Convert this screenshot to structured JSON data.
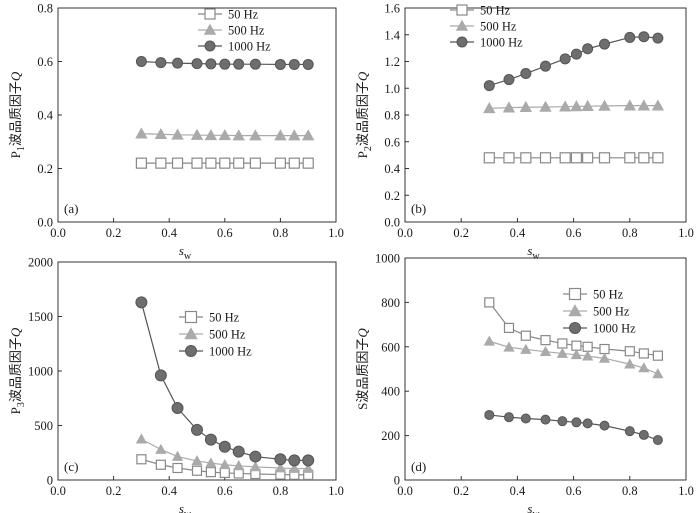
{
  "chart_data": [
    {
      "type": "line",
      "panel": "(a)",
      "ylabel_prefix": "P",
      "ylabel_sub": "1",
      "ylabel_main": "波品质因子",
      "ylabel_q": "Q",
      "xlabel_main": "s",
      "xlabel_sub": "w",
      "xlim": [
        0.0,
        1.0
      ],
      "ylim": [
        0.0,
        0.8
      ],
      "x_ticks": [
        0.0,
        0.2,
        0.4,
        0.6,
        0.8,
        1.0
      ],
      "y_ticks": [
        0.0,
        0.2,
        0.4,
        0.6,
        0.8
      ],
      "x_tick_labels": [
        "0.0",
        "0.2",
        "0.4",
        "0.6",
        "0.8",
        "1.0"
      ],
      "y_tick_labels": [
        "0.0",
        "0.2",
        "0.4",
        "0.6",
        "0.8"
      ],
      "legend_position": "top-center",
      "x": [
        0.3,
        0.37,
        0.43,
        0.5,
        0.55,
        0.6,
        0.65,
        0.71,
        0.8,
        0.85,
        0.9
      ],
      "series": [
        {
          "name": "50 Hz",
          "marker": "square",
          "color": "#888888",
          "fill": "#ffffff",
          "values": [
            0.22,
            0.22,
            0.22,
            0.22,
            0.22,
            0.22,
            0.22,
            0.22,
            0.22,
            0.22,
            0.22
          ]
        },
        {
          "name": "500 Hz",
          "marker": "triangle",
          "color": "#aaaaaa",
          "fill": "#aaaaaa",
          "values": [
            0.33,
            0.328,
            0.326,
            0.325,
            0.324,
            0.324,
            0.323,
            0.323,
            0.323,
            0.323,
            0.323
          ]
        },
        {
          "name": "1000 Hz",
          "marker": "circle",
          "color": "#555555",
          "fill": "#6e6e6e",
          "values": [
            0.6,
            0.596,
            0.594,
            0.592,
            0.591,
            0.59,
            0.59,
            0.59,
            0.589,
            0.589,
            0.589
          ]
        }
      ]
    },
    {
      "type": "line",
      "panel": "(b)",
      "ylabel_prefix": "P",
      "ylabel_sub": "2",
      "ylabel_main": "波品质因子",
      "ylabel_q": "Q",
      "xlabel_main": "s",
      "xlabel_sub": "w",
      "xlim": [
        0.0,
        1.0
      ],
      "ylim": [
        0.0,
        1.6
      ],
      "x_ticks": [
        0.0,
        0.2,
        0.4,
        0.6,
        0.8,
        1.0
      ],
      "y_ticks": [
        0.0,
        0.2,
        0.4,
        0.6,
        0.8,
        1.0,
        1.2,
        1.4,
        1.6
      ],
      "x_tick_labels": [
        "0.0",
        "0.2",
        "0.4",
        "0.6",
        "0.8",
        "1.0"
      ],
      "y_tick_labels": [
        "0.0",
        "0.2",
        "0.4",
        "0.6",
        "0.8",
        "1.0",
        "1.2",
        "1.4",
        "1.6"
      ],
      "legend_position": "top-center",
      "x": [
        0.3,
        0.37,
        0.43,
        0.5,
        0.57,
        0.61,
        0.65,
        0.71,
        0.8,
        0.85,
        0.9
      ],
      "series": [
        {
          "name": "50 Hz",
          "marker": "square",
          "color": "#888888",
          "fill": "#ffffff",
          "values": [
            0.48,
            0.48,
            0.48,
            0.48,
            0.48,
            0.48,
            0.48,
            0.48,
            0.48,
            0.48,
            0.48
          ]
        },
        {
          "name": "500 Hz",
          "marker": "triangle",
          "color": "#aaaaaa",
          "fill": "#aaaaaa",
          "values": [
            0.85,
            0.855,
            0.858,
            0.86,
            0.862,
            0.864,
            0.866,
            0.868,
            0.87,
            0.87,
            0.87
          ]
        },
        {
          "name": "1000 Hz",
          "marker": "circle",
          "color": "#555555",
          "fill": "#6e6e6e",
          "values": [
            1.02,
            1.065,
            1.11,
            1.165,
            1.22,
            1.255,
            1.295,
            1.33,
            1.38,
            1.385,
            1.375
          ]
        }
      ]
    },
    {
      "type": "line",
      "panel": "(c)",
      "ylabel_prefix": "P",
      "ylabel_sub": "3",
      "ylabel_main": "波品质因子",
      "ylabel_q": "Q",
      "xlabel_main": "s",
      "xlabel_sub": "w",
      "xlim": [
        0.0,
        1.0
      ],
      "ylim": [
        0,
        2000
      ],
      "x_ticks": [
        0.0,
        0.2,
        0.4,
        0.6,
        0.8,
        1.0
      ],
      "y_ticks": [
        0,
        500,
        1000,
        1500,
        2000
      ],
      "x_tick_labels": [
        "0.0",
        "0.2",
        "0.4",
        "0.6",
        "0.8",
        "1.0"
      ],
      "y_tick_labels": [
        "0",
        "500",
        "1000",
        "1500",
        "2000"
      ],
      "legend_position": "center-right",
      "x": [
        0.3,
        0.37,
        0.43,
        0.5,
        0.55,
        0.6,
        0.65,
        0.71,
        0.8,
        0.85,
        0.9
      ],
      "series": [
        {
          "name": "50 Hz",
          "marker": "square",
          "color": "#888888",
          "fill": "#ffffff",
          "values": [
            190,
            140,
            110,
            85,
            72,
            65,
            60,
            55,
            50,
            48,
            47
          ]
        },
        {
          "name": "500 Hz",
          "marker": "triangle",
          "color": "#aaaaaa",
          "fill": "#aaaaaa",
          "values": [
            375,
            280,
            215,
            175,
            155,
            140,
            130,
            120,
            110,
            105,
            105
          ]
        },
        {
          "name": "1000 Hz",
          "marker": "circle",
          "color": "#555555",
          "fill": "#6e6e6e",
          "values": [
            1630,
            960,
            660,
            460,
            370,
            305,
            260,
            215,
            190,
            180,
            180
          ]
        }
      ]
    },
    {
      "type": "line",
      "panel": "(d)",
      "ylabel_prefix": "S",
      "ylabel_sub": "",
      "ylabel_main": "波品质因子",
      "ylabel_q": "Q",
      "xlabel_main": "s",
      "xlabel_sub": "w",
      "xlim": [
        0.0,
        1.0
      ],
      "ylim": [
        0,
        1000
      ],
      "x_ticks": [
        0.0,
        0.2,
        0.4,
        0.6,
        0.8,
        1.0
      ],
      "y_ticks": [
        0,
        200,
        400,
        600,
        800,
        1000
      ],
      "x_tick_labels": [
        "0.0",
        "0.2",
        "0.4",
        "0.6",
        "0.8",
        "1.0"
      ],
      "y_tick_labels": [
        "0",
        "200",
        "400",
        "600",
        "800",
        "1000"
      ],
      "legend_position": "top-center",
      "x": [
        0.3,
        0.37,
        0.43,
        0.5,
        0.56,
        0.61,
        0.65,
        0.71,
        0.8,
        0.85,
        0.9
      ],
      "series": [
        {
          "name": "50 Hz",
          "marker": "square",
          "color": "#888888",
          "fill": "#ffffff",
          "values": [
            800,
            685,
            650,
            630,
            615,
            605,
            600,
            590,
            580,
            570,
            560
          ]
        },
        {
          "name": "500 Hz",
          "marker": "triangle",
          "color": "#aaaaaa",
          "fill": "#aaaaaa",
          "values": [
            625,
            598,
            588,
            578,
            570,
            564,
            558,
            548,
            522,
            505,
            478
          ]
        },
        {
          "name": "1000 Hz",
          "marker": "circle",
          "color": "#555555",
          "fill": "#6e6e6e",
          "values": [
            293,
            283,
            277,
            272,
            265,
            260,
            255,
            245,
            220,
            203,
            180
          ]
        }
      ]
    }
  ]
}
